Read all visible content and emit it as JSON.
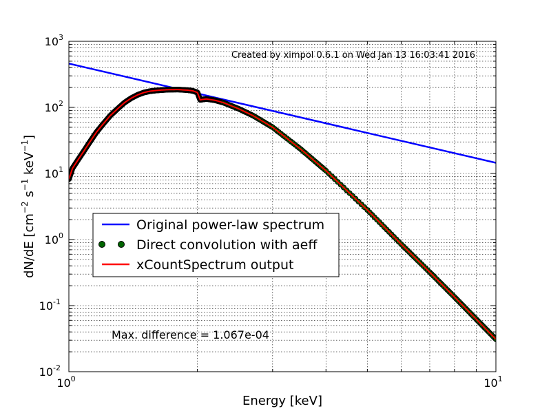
{
  "chart_data": {
    "type": "line",
    "xscale": "log",
    "yscale": "log",
    "xlim": [
      1,
      10
    ],
    "ylim": [
      0.01,
      1000
    ],
    "grid": true,
    "legend_placement": "center-left",
    "xlabel": "Energy [keV]",
    "ylabel": "dN/dE [cm^-2 s^-1 keV^-1]",
    "xticklabels": [
      {
        "value": 1,
        "base": "10",
        "exp": "0"
      },
      {
        "value": 10,
        "base": "10",
        "exp": "1"
      }
    ],
    "yticklabels": [
      {
        "value": 0.01,
        "base": "10",
        "exp": "-2"
      },
      {
        "value": 0.1,
        "base": "10",
        "exp": "-1"
      },
      {
        "value": 1,
        "base": "10",
        "exp": "0"
      },
      {
        "value": 10,
        "base": "10",
        "exp": "1"
      },
      {
        "value": 100,
        "base": "10",
        "exp": "2"
      },
      {
        "value": 1000,
        "base": "10",
        "exp": "3"
      }
    ],
    "annotations": {
      "created": "Created by ximpol 0.6.1 on Wed Jan 13 16:03:41 2016",
      "max_difference": "Max. difference = 1.067e-04"
    },
    "series": [
      {
        "name": "Original power-law spectrum",
        "style": "line",
        "color": "#0000ff",
        "x": [
          1,
          10
        ],
        "y": [
          460,
          14.5
        ]
      },
      {
        "name": "Direct convolution with aeff",
        "style": "markers",
        "color": "#006400",
        "x": [
          1.0,
          1.02,
          1.05,
          1.08,
          1.12,
          1.16,
          1.2,
          1.25,
          1.3,
          1.35,
          1.4,
          1.45,
          1.5,
          1.55,
          1.6,
          1.65,
          1.7,
          1.8,
          1.9,
          1.95,
          2.0,
          2.03,
          2.06,
          2.1,
          2.2,
          2.3,
          2.5,
          2.7,
          3.0,
          3.5,
          4.0,
          5.0,
          6.0,
          7.0,
          8.0,
          9.0,
          10.0
        ],
        "y": [
          8.2,
          12,
          16,
          21,
          30,
          42,
          55,
          75,
          95,
          118,
          138,
          155,
          168,
          176,
          180,
          183,
          185,
          186,
          182,
          178,
          168,
          130,
          132,
          134,
          128,
          118,
          95,
          75,
          50,
          23,
          11,
          2.8,
          0.85,
          0.32,
          0.135,
          0.062,
          0.031
        ]
      },
      {
        "name": "xCountSpectrum output",
        "style": "line",
        "color": "#ff0000",
        "x": [
          1.0,
          1.02,
          1.05,
          1.08,
          1.12,
          1.16,
          1.2,
          1.25,
          1.3,
          1.35,
          1.4,
          1.45,
          1.5,
          1.55,
          1.6,
          1.65,
          1.7,
          1.8,
          1.9,
          1.95,
          2.0,
          2.03,
          2.06,
          2.1,
          2.2,
          2.3,
          2.5,
          2.7,
          3.0,
          3.5,
          4.0,
          5.0,
          6.0,
          7.0,
          8.0,
          9.0,
          10.0
        ],
        "y": [
          8.2,
          12,
          16,
          21,
          30,
          42,
          55,
          75,
          95,
          118,
          138,
          155,
          168,
          176,
          180,
          183,
          185,
          186,
          182,
          178,
          168,
          130,
          132,
          134,
          128,
          118,
          95,
          75,
          50,
          23,
          11,
          2.8,
          0.85,
          0.32,
          0.135,
          0.062,
          0.031
        ]
      }
    ]
  }
}
